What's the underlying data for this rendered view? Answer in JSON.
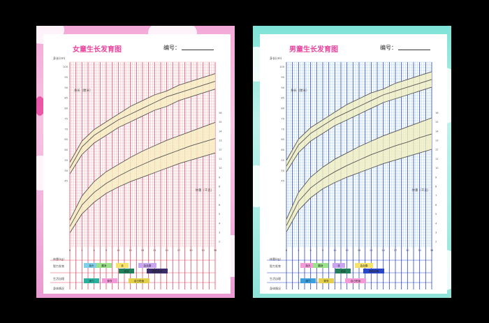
{
  "charts": [
    {
      "id": "girl",
      "title": "女童生长发育图",
      "serial_label": "编号：",
      "colors": {
        "accent": "#e8439e",
        "grid_major": "#e84a63",
        "grid_minor": "#f3aab3",
        "band": "#f6eec0",
        "curve": "#555555",
        "panel_bg": "#f4a9d8"
      },
      "labels": {
        "top_left": "身长(cm)",
        "height_label": "身长（厘米）",
        "weight_label": "体重（千克）",
        "weight_left": "体重(kg)",
        "rows": [
          "智力发育",
          "生活自理",
          "身体情况"
        ]
      },
      "milestones": [
        {
          "text": "抬头",
          "color": "#7fd0e8"
        },
        {
          "text": "翻身",
          "color": "#9be28a"
        },
        {
          "text": "坐",
          "color": "#f7e26a"
        },
        {
          "text": "会走路",
          "color": "#c9a5f0"
        },
        {
          "text": "说话",
          "color": "#1f7f5a"
        },
        {
          "text": "唱歌跳舞",
          "color": "#3a2b6b"
        },
        {
          "text": "用勺",
          "color": "#2bb0a0"
        },
        {
          "text": "穿衣",
          "color": "#f59ad8"
        },
        {
          "text": "自己吃饭",
          "color": "#e4cf4a"
        }
      ],
      "chart_data": {
        "type": "line",
        "x_axis": {
          "ticks": [
            "0",
            "3",
            "6",
            "9",
            "12",
            "15",
            "18",
            "21",
            "24",
            "27",
            "30",
            "33",
            "36"
          ]
        },
        "y_axis_height": {
          "ticks": [
            "100",
            "95",
            "90",
            "85",
            "80",
            "75",
            "70",
            "65",
            "60",
            "55",
            "50",
            "45"
          ]
        },
        "y_axis_weight": {
          "ticks": [
            "16",
            "15",
            "14",
            "13",
            "12",
            "11",
            "10",
            "9",
            "8",
            "7",
            "6",
            "5",
            "4",
            "3",
            "2"
          ]
        },
        "series": [
          {
            "group": "height",
            "x": [
              0,
              3,
              6,
              9,
              12,
              15,
              18,
              21,
              24,
              27,
              30,
              33,
              36
            ],
            "values": [
              47,
              57,
              63,
              67,
              71,
              74,
              77,
              80,
              82,
              85,
              87,
              89,
              91
            ]
          },
          {
            "group": "height",
            "x": [
              0,
              3,
              6,
              9,
              12,
              15,
              18,
              21,
              24,
              27,
              30,
              33,
              36
            ],
            "values": [
              50,
              61,
              67,
              71,
              75,
              78,
              81,
              84,
              87,
              89,
              91,
              93,
              95
            ]
          },
          {
            "group": "height",
            "x": [
              0,
              3,
              6,
              9,
              12,
              15,
              18,
              21,
              24,
              27,
              30,
              33,
              36
            ],
            "values": [
              53,
              64,
              70,
              74,
              78,
              82,
              85,
              88,
              90,
              93,
              95,
              97,
              99
            ]
          },
          {
            "group": "weight",
            "x": [
              0,
              3,
              6,
              9,
              12,
              15,
              18,
              21,
              24,
              27,
              30,
              33,
              36
            ],
            "values": [
              2.5,
              4.6,
              5.9,
              6.9,
              7.6,
              8.2,
              8.7,
              9.2,
              9.7,
              10.2,
              10.6,
              11.0,
              11.4
            ]
          },
          {
            "group": "weight",
            "x": [
              0,
              3,
              6,
              9,
              12,
              15,
              18,
              21,
              24,
              27,
              30,
              33,
              36
            ],
            "values": [
              3.2,
              5.6,
              7.0,
              8.0,
              8.8,
              9.5,
              10.1,
              10.7,
              11.2,
              11.7,
              12.2,
              12.6,
              13.0
            ]
          },
          {
            "group": "weight",
            "x": [
              0,
              3,
              6,
              9,
              12,
              15,
              18,
              21,
              24,
              27,
              30,
              33,
              36
            ],
            "values": [
              3.9,
              6.6,
              8.2,
              9.3,
              10.1,
              10.9,
              11.6,
              12.2,
              12.8,
              13.3,
              13.8,
              14.3,
              14.8
            ]
          }
        ]
      }
    },
    {
      "id": "boy",
      "title": "男童生长发育图",
      "serial_label": "编号：",
      "colors": {
        "accent": "#e8439e",
        "grid_major": "#2a46c8",
        "grid_minor": "#9cc8ee",
        "band": "#f1efc0",
        "curve": "#555555",
        "panel_bg": "#7fe3d7"
      },
      "labels": {
        "top_left": "身长(cm)",
        "height_label": "身长（厘米）",
        "weight_label": "体重（千克）",
        "weight_left": "体重(kg)",
        "rows": [
          "智力发育",
          "生活自理",
          "身体情况"
        ]
      },
      "milestones": [
        {
          "text": "抬头",
          "color": "#f59ad8"
        },
        {
          "text": "翻身",
          "color": "#9be28a"
        },
        {
          "text": "坐",
          "color": "#c9a5f0"
        },
        {
          "text": "会走路",
          "color": "#f7e26a"
        },
        {
          "text": "说话",
          "color": "#1f7f5a"
        },
        {
          "text": "唱歌跳舞",
          "color": "#2a46c8"
        },
        {
          "text": "用勺",
          "color": "#3aa0e0"
        },
        {
          "text": "穿衣",
          "color": "#e4cf4a"
        },
        {
          "text": "自己吃饭",
          "color": "#f59ad8"
        }
      ],
      "chart_data": {
        "type": "line",
        "x_axis": {
          "ticks": [
            "0",
            "3",
            "6",
            "9",
            "12",
            "15",
            "18",
            "21",
            "24",
            "27",
            "30",
            "33",
            "36"
          ]
        },
        "y_axis_height": {
          "ticks": [
            "100",
            "95",
            "90",
            "85",
            "80",
            "75",
            "70",
            "65",
            "60",
            "55",
            "50",
            "45"
          ]
        },
        "y_axis_weight": {
          "ticks": [
            "16",
            "15",
            "14",
            "13",
            "12",
            "11",
            "10",
            "9",
            "8",
            "7",
            "6",
            "5",
            "4",
            "3",
            "2"
          ]
        },
        "series": [
          {
            "group": "height",
            "x": [
              0,
              3,
              6,
              9,
              12,
              15,
              18,
              21,
              24,
              27,
              30,
              33,
              36
            ],
            "values": [
              48,
              58,
              64,
              68,
              72,
              75,
              78,
              81,
              84,
              86,
              88,
              90,
              92
            ]
          },
          {
            "group": "height",
            "x": [
              0,
              3,
              6,
              9,
              12,
              15,
              18,
              21,
              24,
              27,
              30,
              33,
              36
            ],
            "values": [
              51,
              62,
              68,
              72,
              76,
              79,
              82,
              85,
              88,
              90,
              92,
              94,
              96
            ]
          },
          {
            "group": "height",
            "x": [
              0,
              3,
              6,
              9,
              12,
              15,
              18,
              21,
              24,
              27,
              30,
              33,
              36
            ],
            "values": [
              54,
              65,
              71,
              75,
              79,
              83,
              86,
              89,
              91,
              94,
              96,
              98,
              100
            ]
          },
          {
            "group": "weight",
            "x": [
              0,
              3,
              6,
              9,
              12,
              15,
              18,
              21,
              24,
              27,
              30,
              33,
              36
            ],
            "values": [
              2.6,
              5.0,
              6.4,
              7.4,
              8.1,
              8.7,
              9.2,
              9.7,
              10.2,
              10.6,
              11.0,
              11.4,
              11.8
            ]
          },
          {
            "group": "weight",
            "x": [
              0,
              3,
              6,
              9,
              12,
              15,
              18,
              21,
              24,
              27,
              30,
              33,
              36
            ],
            "values": [
              3.3,
              6.0,
              7.5,
              8.5,
              9.3,
              10.0,
              10.6,
              11.2,
              11.7,
              12.2,
              12.6,
              13.1,
              13.5
            ]
          },
          {
            "group": "weight",
            "x": [
              0,
              3,
              6,
              9,
              12,
              15,
              18,
              21,
              24,
              27,
              30,
              33,
              36
            ],
            "values": [
              4.0,
              7.0,
              8.7,
              9.8,
              10.7,
              11.4,
              12.1,
              12.7,
              13.3,
              13.8,
              14.3,
              14.8,
              15.3
            ]
          }
        ]
      }
    }
  ]
}
